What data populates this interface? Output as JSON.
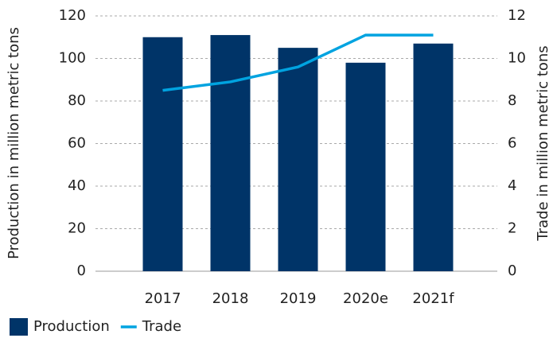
{
  "chart_data": {
    "type": "bar",
    "categories": [
      "2017",
      "2018",
      "2019",
      "2020e",
      "2021f"
    ],
    "series": [
      {
        "name": "Production",
        "type": "bar",
        "color": "#003468",
        "values": [
          110,
          111,
          105,
          98,
          107
        ]
      },
      {
        "name": "Trade",
        "type": "line",
        "color": "#00a3e0",
        "axis": "y2",
        "values": [
          8.5,
          8.9,
          9.6,
          11.1,
          11.1
        ]
      }
    ],
    "ylabel": "Production in million metric tons",
    "y2label": "Trade in million metric tons",
    "ylim": [
      0,
      120
    ],
    "yticks": [
      0,
      20,
      40,
      60,
      80,
      100,
      120
    ],
    "y2lim": [
      0,
      12
    ],
    "y2ticks": [
      0,
      2,
      4,
      6,
      8,
      10,
      12
    ],
    "grid": true,
    "legend": "bottom-left"
  }
}
